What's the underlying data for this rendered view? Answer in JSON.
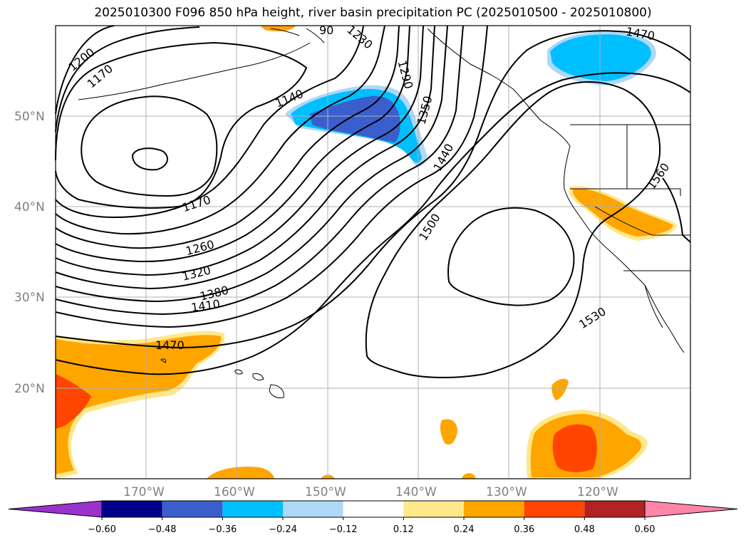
{
  "title": "2025010300 F096 850 hPa height, river basin precipitation PC (2025010500 - 2025010800)",
  "map": {
    "lat_labels": [
      "50°N",
      "40°N",
      "30°N",
      "20°N"
    ],
    "lon_labels": [
      "170°W",
      "160°W",
      "150°W",
      "140°W",
      "130°W",
      "120°W"
    ],
    "contour_labels": [
      "1200",
      "1170",
      "1140",
      "1230",
      "1290",
      "1350",
      "1440",
      "1470",
      "1560",
      "1170",
      "1260",
      "1320",
      "1380",
      "1410",
      "1500",
      "1530",
      "1470",
      "90"
    ],
    "colors": {
      "land_outline": "#000000",
      "grid": "#b0b0b0",
      "neg_strong": "#3a5fcd",
      "neg_mid": "#00bfff",
      "neg_weak": "#add8f6",
      "pos_weak": "#ffe88a",
      "pos_mid": "#ffa500",
      "pos_strong": "#ff4500",
      "pos_very": "#b22222"
    }
  },
  "colorbar": {
    "ticks": [
      "−0.60",
      "−0.48",
      "−0.36",
      "−0.24",
      "−0.12",
      "0.12",
      "0.24",
      "0.36",
      "0.48",
      "0.60"
    ],
    "colors": [
      "#9932cc",
      "#00008b",
      "#3a5fcd",
      "#00bfff",
      "#add8f6",
      "#ffffff",
      "#ffe88a",
      "#ffa500",
      "#ff4500",
      "#b22222",
      "#ff85a9"
    ]
  }
}
